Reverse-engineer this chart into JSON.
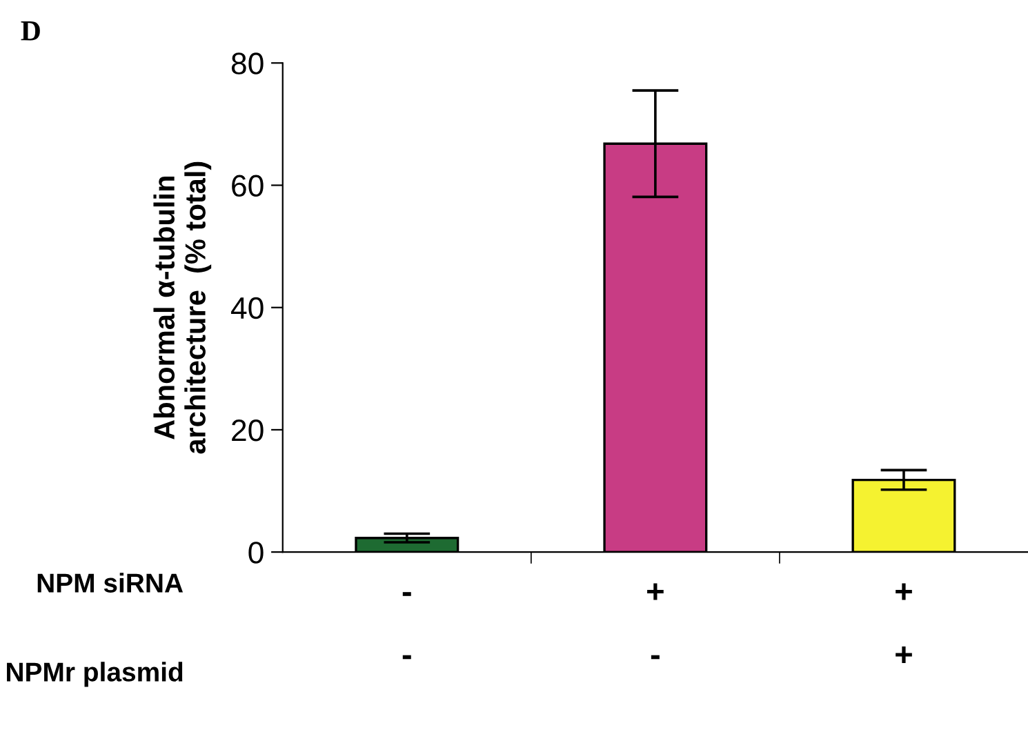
{
  "chart_data": {
    "type": "bar",
    "ylabel": "Abnormal α-tubulin\narchitecture  (% total)",
    "categories": [
      "-\n\n-",
      "+\n\n-",
      "+\n\n+"
    ],
    "values": [
      2.3,
      66.8,
      11.8
    ],
    "colors": [
      "#1e6b32",
      "#c83c84",
      "#f5f230"
    ],
    "errors": [
      0.7,
      8.7,
      1.6
    ],
    "ylim": [
      0,
      80
    ],
    "yticks": [
      0,
      20,
      40,
      60,
      80
    ],
    "grid": false,
    "annotations": [
      "D",
      "NPM siRNA",
      "NPMr plasmid"
    ]
  }
}
